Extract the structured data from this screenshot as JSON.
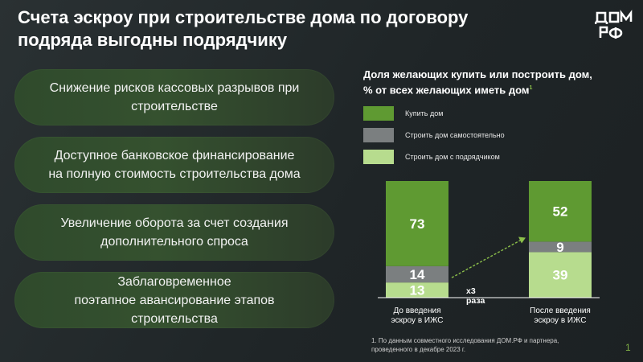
{
  "slide": {
    "title": "Счета эскроу при строительстве дома по договору подряда выгодны подрядчику",
    "page_number": "1",
    "logo_text": [
      "ДОМ",
      "РФ"
    ]
  },
  "benefits": [
    {
      "text": "Снижение рисков кассовых разрывов при\nстроительстве"
    },
    {
      "text": "Доступное банковское финансирование\nна полную стоимость строительства дома"
    },
    {
      "text": "Увеличение оборота за счет создания\nдополнительного спроса"
    },
    {
      "text": "Заблаговременное\nпоэтапное авансирование этапов\nстроительства"
    }
  ],
  "chart_data": {
    "type": "bar",
    "stacked": true,
    "title": "Доля желающих купить или построить дом,\n% от всех желающих иметь дом",
    "title_footnote_mark": "1",
    "categories": [
      "До введения\nэскроу в ИЖС",
      "После введения\nэскроу в ИЖС"
    ],
    "series": [
      {
        "name": "Строить дом с подрядчиком",
        "color": "#b7dc8e",
        "label_color": "#ffffff",
        "values": [
          13,
          39
        ]
      },
      {
        "name": "Строить дом самостоятельно",
        "color": "#7b7f80",
        "label_color": "#ffffff",
        "values": [
          14,
          9
        ]
      },
      {
        "name": "Купить дом",
        "color": "#5f9a32",
        "label_color": "#ffffff",
        "values": [
          73,
          52
        ]
      }
    ],
    "legend_order": [
      "Купить дом",
      "Строить дом самостоятельно",
      "Строить дом с подрядчиком"
    ],
    "ylim": [
      0,
      100
    ],
    "annotation": {
      "text": "x3\nраза",
      "color": "#8cc04a"
    }
  },
  "footnote": "1. По данным совместного исследования ДОМ.РФ и партнера,\nпроведенного в декабре 2023 г."
}
